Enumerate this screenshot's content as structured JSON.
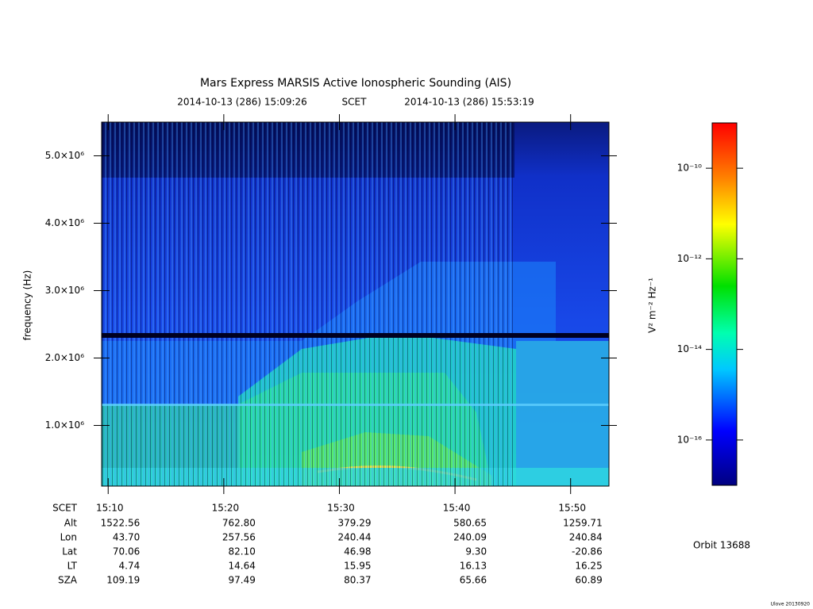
{
  "chart_data": {
    "type": "spectrogram",
    "title": "Mars Express MARSIS Active Ionospheric Sounding (AIS)",
    "subtitle": [
      "2014-10-13 (286) 15:09:26",
      "SCET",
      "2014-10-13 (286) 15:53:19"
    ],
    "y_label": "frequency (Hz)",
    "ylim": [
      100000,
      5500000
    ],
    "yticks": [
      {
        "value": 1000000,
        "label": "1.0×10⁶"
      },
      {
        "value": 2000000,
        "label": "2.0×10⁶"
      },
      {
        "value": 3000000,
        "label": "3.0×10⁶"
      },
      {
        "value": 4000000,
        "label": "4.0×10⁶"
      },
      {
        "value": 5000000,
        "label": "5.0×10⁶"
      }
    ],
    "xlim": [
      "15:09:26",
      "15:53:19"
    ],
    "xticks": [
      "15:10",
      "15:20",
      "15:30",
      "15:40",
      "15:50"
    ],
    "ephemeris": {
      "labels": [
        "SCET",
        "Alt",
        "Lon",
        "Lat",
        "LT",
        "SZA"
      ],
      "rows": [
        [
          "1522.56",
          "762.80",
          "379.29",
          "580.65",
          "1259.71"
        ],
        [
          "43.70",
          "257.56",
          "240.44",
          "240.09",
          "240.84"
        ],
        [
          "70.06",
          "82.10",
          "46.98",
          "9.30",
          "-20.86"
        ],
        [
          "4.74",
          "14.64",
          "15.95",
          "16.13",
          "16.25"
        ],
        [
          "109.19",
          "97.49",
          "80.37",
          "65.66",
          "60.89"
        ]
      ]
    },
    "colorbar": {
      "label": "V² m⁻² Hz⁻¹",
      "log": true,
      "lim": [
        1e-17,
        1e-09
      ],
      "ticks": [
        {
          "value": 1e-10,
          "label": "10⁻¹⁰"
        },
        {
          "value": 1e-12,
          "label": "10⁻¹²"
        },
        {
          "value": 1e-14,
          "label": "10⁻¹⁴"
        },
        {
          "value": 1e-16,
          "label": "10⁻¹⁶"
        }
      ]
    },
    "annotation": "Orbit 13688",
    "footer": "Ulove 20130920"
  }
}
